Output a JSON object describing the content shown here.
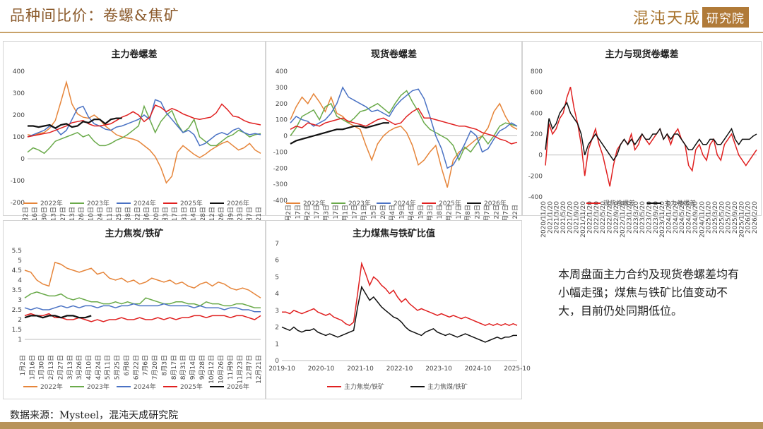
{
  "header": {
    "title": "品种间比价：卷螺&焦矿",
    "logo_text": "混沌天成",
    "logo_box": "研究院"
  },
  "note": "本周盘面主力合约及现货卷螺差均有小幅走强；煤焦与铁矿比值变动不大，目前仍处同期低位。",
  "source": "数据来源：Mysteel，混沌天成研究院",
  "colors": {
    "y2022": "#e6853a",
    "y2023": "#6aaa4a",
    "y2024": "#4a72c4",
    "y2025": "#e02020",
    "y2026": "#111111"
  },
  "chart_data": [
    {
      "id": "c1",
      "type": "line",
      "title": "主力卷螺差",
      "ylim": [
        -200,
        400
      ],
      "yticks": [
        -200,
        -100,
        0,
        100,
        200,
        300,
        400
      ],
      "x_labels": [
        "1月2日",
        "1月16日",
        "1月30日",
        "2月13日",
        "2月27日",
        "3月13日",
        "3月26日",
        "4月10日",
        "4月24日",
        "5月11日",
        "5月25日",
        "6月8日",
        "6月22日",
        "7月6日",
        "7月20日",
        "8月3日",
        "8月17日",
        "8月31日",
        "9月14日",
        "9月28日",
        "10月12日",
        "10月26日",
        "11月9日",
        "11月23日",
        "12月7日",
        "12月21日"
      ],
      "series": [
        {
          "name": "2022年",
          "color_key": "y2022",
          "values": [
            110,
            105,
            115,
            120,
            140,
            175,
            260,
            350,
            250,
            205,
            190,
            185,
            200,
            180,
            150,
            130,
            110,
            100,
            95,
            90,
            80,
            60,
            40,
            10,
            -40,
            -110,
            -80,
            30,
            60,
            40,
            20,
            5,
            20,
            40,
            55,
            70,
            80,
            60,
            40,
            50,
            70,
            40,
            25
          ]
        },
        {
          "name": "2023年",
          "color_key": "y2023",
          "values": [
            30,
            50,
            40,
            25,
            50,
            80,
            90,
            100,
            110,
            120,
            100,
            110,
            80,
            60,
            60,
            70,
            85,
            95,
            110,
            130,
            150,
            240,
            180,
            120,
            170,
            200,
            220,
            160,
            120,
            140,
            180,
            100,
            80,
            60,
            60,
            80,
            100,
            110,
            130,
            120,
            100,
            110,
            115
          ]
        },
        {
          "name": "2024年",
          "color_key": "y2024",
          "values": [
            100,
            110,
            120,
            130,
            150,
            140,
            110,
            130,
            180,
            230,
            240,
            190,
            160,
            150,
            135,
            130,
            145,
            150,
            160,
            170,
            180,
            200,
            180,
            270,
            260,
            210,
            180,
            150,
            120,
            130,
            110,
            60,
            70,
            90,
            110,
            120,
            110,
            130,
            140,
            120,
            110,
            115,
            110
          ]
        },
        {
          "name": "2025年",
          "color_key": "y2025",
          "values": [
            100,
            105,
            110,
            115,
            120,
            130,
            140,
            150,
            165,
            170,
            175,
            160,
            150,
            150,
            155,
            160,
            175,
            190,
            200,
            215,
            200,
            170,
            190,
            245,
            235,
            215,
            230,
            220,
            205,
            195,
            185,
            180,
            185,
            190,
            210,
            250,
            225,
            195,
            190,
            175,
            165,
            160,
            155
          ]
        },
        {
          "name": "2026年",
          "color_key": "y2026",
          "values": [
            150,
            150,
            145,
            150,
            155,
            140,
            155,
            160,
            145,
            150,
            170,
            165,
            180,
            180,
            160,
            180,
            185,
            185
          ]
        }
      ]
    },
    {
      "id": "c2",
      "type": "line",
      "title": "现货卷螺差",
      "ylim": [
        -400,
        400
      ],
      "yticks": [
        -400,
        -300,
        -200,
        -100,
        0,
        100,
        200,
        300,
        400
      ],
      "x_labels": [
        "1月2日",
        "1月17日",
        "2月2日",
        "2月17日",
        "3月3日",
        "3月17日",
        "4月1日",
        "4月17日",
        "5月1日",
        "5月15日",
        "5月20日",
        "6月4日",
        "6月19日",
        "7月4日",
        "7月19日",
        "8月3日",
        "8月18日",
        "9月2日",
        "9月17日",
        "10月8日",
        "10月23日",
        "11月7日",
        "11月22日",
        "12月7日",
        "12月22日"
      ],
      "series": [
        {
          "name": "2022年",
          "color_key": "y2022",
          "values": [
            100,
            180,
            240,
            200,
            260,
            210,
            150,
            240,
            140,
            120,
            80,
            60,
            40,
            -60,
            -150,
            -50,
            0,
            30,
            50,
            60,
            20,
            -60,
            -180,
            -150,
            -100,
            -60,
            -200,
            -320,
            -150,
            -100,
            -80,
            -50,
            -20,
            0,
            50,
            150,
            200,
            120,
            60,
            40
          ]
        },
        {
          "name": "2023年",
          "color_key": "y2023",
          "values": [
            0,
            50,
            120,
            140,
            160,
            100,
            180,
            200,
            120,
            100,
            80,
            110,
            150,
            160,
            180,
            200,
            170,
            140,
            200,
            250,
            280,
            210,
            150,
            80,
            40,
            20,
            0,
            -20,
            -60,
            -150,
            -70,
            -100,
            -50,
            0,
            -50,
            0,
            60,
            80,
            70,
            60
          ]
        },
        {
          "name": "2024年",
          "color_key": "y2024",
          "values": [
            80,
            120,
            100,
            90,
            60,
            80,
            100,
            140,
            200,
            300,
            240,
            220,
            200,
            180,
            150,
            160,
            140,
            120,
            180,
            220,
            250,
            280,
            290,
            230,
            120,
            0,
            -80,
            -200,
            -180,
            -120,
            -50,
            30,
            0,
            -100,
            -80,
            -20,
            30,
            50,
            80,
            60
          ]
        },
        {
          "name": "2025年",
          "color_key": "y2025",
          "values": [
            40,
            60,
            50,
            80,
            70,
            60,
            80,
            90,
            100,
            110,
            90,
            80,
            70,
            60,
            80,
            100,
            110,
            90,
            70,
            80,
            120,
            150,
            170,
            110,
            110,
            100,
            90,
            80,
            70,
            60,
            60,
            50,
            40,
            20,
            10,
            0,
            -20,
            -30,
            -50,
            -40
          ]
        },
        {
          "name": "2026年",
          "color_key": "y2026",
          "values": [
            -50,
            -30,
            -20,
            -10,
            0,
            10,
            20,
            30,
            40,
            40,
            50,
            60,
            60,
            50,
            60,
            70,
            80,
            80
          ]
        }
      ]
    },
    {
      "id": "c3",
      "type": "line",
      "title": "主力与现货卷螺差",
      "ylim": [
        -400,
        800
      ],
      "yticks": [
        -400,
        -200,
        0,
        200,
        400,
        600,
        800
      ],
      "x_labels": [
        "2020/11/20",
        "2021/1/20",
        "2021/3/20",
        "2021/5/20",
        "2021/7/20",
        "2021/9/20",
        "2021/11/20",
        "2022/1/20",
        "2022/3/20",
        "2022/5/20",
        "2022/7/20",
        "2022/9/20",
        "2022/11/20",
        "2023/1/20",
        "2023/3/20",
        "2023/5/20",
        "2023/7/20",
        "2023/9/20",
        "2023/11/20",
        "2024/1/20",
        "2024/3/20",
        "2024/5/20",
        "2024/7/20",
        "2024/9/20",
        "2024/11/20",
        "2025/1/20",
        "2025/3/20",
        "2025/5/20",
        "2025/7/20",
        "2025/9/20",
        "2025/11/20",
        "2026/1/20",
        "2026/2/20"
      ],
      "series": [
        {
          "name": "现货卷螺差",
          "color_key": "y2025",
          "values": [
            -100,
            300,
            200,
            250,
            350,
            400,
            550,
            650,
            450,
            300,
            100,
            -200,
            50,
            150,
            250,
            100,
            0,
            -150,
            -300,
            -100,
            50,
            100,
            150,
            100,
            200,
            50,
            100,
            200,
            150,
            100,
            150,
            200,
            250,
            150,
            200,
            100,
            200,
            250,
            150,
            100,
            -100,
            -150,
            50,
            100,
            0,
            -50,
            100,
            150,
            0,
            -50,
            100,
            150,
            200,
            100,
            0,
            -50,
            -100,
            -50,
            0,
            50
          ]
        },
        {
          "name": "主力卷螺差",
          "color_key": "y2026",
          "values": [
            50,
            350,
            250,
            300,
            400,
            450,
            500,
            400,
            350,
            300,
            200,
            0,
            100,
            150,
            200,
            150,
            100,
            50,
            0,
            -50,
            0,
            100,
            150,
            100,
            150,
            100,
            150,
            200,
            150,
            150,
            200,
            200,
            250,
            150,
            200,
            150,
            200,
            200,
            150,
            100,
            50,
            50,
            100,
            150,
            100,
            100,
            150,
            150,
            100,
            100,
            150,
            200,
            250,
            150,
            100,
            150,
            150,
            150,
            180,
            200
          ]
        }
      ]
    },
    {
      "id": "c4",
      "type": "line",
      "title": "主力焦炭/铁矿",
      "ylim": [
        1.0,
        5.5
      ],
      "yticks": [
        1.0,
        1.5,
        2.0,
        2.5,
        3.0,
        3.5,
        4.0,
        4.5,
        5.0,
        5.5
      ],
      "x_labels": [
        "1月2日",
        "1月16日",
        "1月30日",
        "2月13日",
        "2月27日",
        "3月13日",
        "3月26日",
        "4月10日",
        "4月24日",
        "5月11日",
        "5月25日",
        "6月8日",
        "6月22日",
        "7月6日",
        "7月20日",
        "8月3日",
        "8月17日",
        "8月31日",
        "9月14日",
        "9月28日",
        "10月12日",
        "10月26日",
        "11月9日",
        "11月23日",
        "12月7日",
        "12月21日"
      ],
      "series": [
        {
          "name": "2022年",
          "color_key": "y2022",
          "values": [
            4.5,
            4.4,
            4.0,
            3.8,
            3.7,
            4.9,
            4.8,
            4.6,
            4.5,
            4.4,
            4.5,
            4.6,
            4.3,
            4.4,
            4.1,
            4.0,
            4.1,
            3.9,
            4.0,
            3.8,
            3.9,
            4.1,
            4.0,
            3.9,
            4.0,
            3.8,
            3.9,
            3.7,
            3.6,
            3.8,
            3.9,
            3.7,
            3.9,
            3.8,
            3.6,
            3.5,
            3.6,
            3.5,
            3.3,
            3.1
          ]
        },
        {
          "name": "2023年",
          "color_key": "y2023",
          "values": [
            3.1,
            3.3,
            3.4,
            3.3,
            3.2,
            3.2,
            3.3,
            3.1,
            3.0,
            3.1,
            3.0,
            2.9,
            2.9,
            2.8,
            2.8,
            2.9,
            2.8,
            2.9,
            2.8,
            2.8,
            3.1,
            3.0,
            2.9,
            2.8,
            2.8,
            2.9,
            2.9,
            2.8,
            2.8,
            2.7,
            2.9,
            2.8,
            2.8,
            2.7,
            2.7,
            2.8,
            2.8,
            2.7,
            2.6,
            2.6
          ]
        },
        {
          "name": "2024年",
          "color_key": "y2024",
          "values": [
            2.6,
            2.5,
            2.6,
            2.5,
            2.5,
            2.6,
            2.7,
            2.6,
            2.7,
            2.6,
            2.7,
            2.7,
            2.6,
            2.7,
            2.7,
            2.6,
            2.7,
            2.7,
            2.8,
            2.7,
            2.7,
            2.7,
            2.7,
            2.8,
            2.7,
            2.7,
            2.7,
            2.7,
            2.6,
            2.7,
            2.6,
            2.6,
            2.6,
            2.5,
            2.6,
            2.6,
            2.5,
            2.5,
            2.4,
            2.4
          ]
        },
        {
          "name": "2025年",
          "color_key": "y2025",
          "values": [
            2.2,
            2.3,
            2.2,
            2.2,
            2.3,
            2.1,
            2.1,
            2.0,
            2.0,
            2.1,
            2.0,
            1.9,
            2.0,
            1.9,
            2.0,
            2.0,
            2.1,
            2.0,
            2.0,
            2.1,
            2.0,
            2.0,
            2.1,
            2.0,
            2.1,
            2.0,
            2.1,
            2.1,
            2.2,
            2.2,
            2.1,
            2.2,
            2.2,
            2.2,
            2.1,
            2.2,
            2.2,
            2.1,
            2.0,
            2.2
          ]
        },
        {
          "name": "2026年",
          "color_key": "y2026",
          "values": [
            2.1,
            2.2,
            2.2,
            2.1,
            2.2,
            2.2,
            2.1,
            2.2,
            2.2,
            2.1,
            2.1,
            2.2
          ]
        }
      ]
    },
    {
      "id": "c5",
      "type": "line",
      "title": "主力煤焦与铁矿比值",
      "ylim": [
        0,
        7
      ],
      "yticks": [
        0,
        1,
        2,
        3,
        4,
        5,
        6,
        7
      ],
      "x_labels": [
        "2019-10",
        "2020-10",
        "2021-10",
        "2022-10",
        "2023-10",
        "2024-10",
        "2025-10"
      ],
      "series": [
        {
          "name": "主力焦炭/铁矿",
          "color_key": "y2025",
          "values": [
            2.9,
            2.9,
            2.8,
            3.0,
            2.9,
            2.8,
            2.9,
            3.0,
            3.1,
            2.9,
            2.8,
            2.7,
            2.8,
            2.6,
            2.5,
            2.4,
            2.2,
            2.1,
            2.3,
            4.0,
            5.8,
            5.2,
            4.5,
            5.0,
            4.8,
            4.5,
            4.3,
            4.0,
            4.2,
            3.8,
            3.5,
            3.7,
            3.4,
            3.2,
            3.0,
            3.1,
            3.0,
            2.9,
            2.8,
            2.7,
            2.8,
            2.7,
            2.6,
            2.7,
            2.6,
            2.5,
            2.6,
            2.5,
            2.4,
            2.3,
            2.2,
            2.1,
            2.2,
            2.1,
            2.2,
            2.1,
            2.2,
            2.1,
            2.2,
            2.1
          ]
        },
        {
          "name": "主力焦煤/铁矿",
          "color_key": "y2026",
          "values": [
            2.0,
            1.9,
            1.8,
            2.0,
            1.8,
            1.7,
            1.8,
            1.8,
            1.9,
            1.7,
            1.6,
            1.5,
            1.6,
            1.5,
            1.4,
            1.5,
            1.6,
            1.7,
            1.8,
            3.2,
            4.4,
            4.0,
            3.6,
            3.8,
            3.5,
            3.2,
            3.0,
            2.8,
            2.6,
            2.5,
            2.3,
            2.0,
            1.8,
            1.7,
            1.6,
            1.5,
            1.7,
            1.8,
            1.9,
            1.7,
            1.6,
            1.5,
            1.6,
            1.5,
            1.4,
            1.5,
            1.6,
            1.5,
            1.4,
            1.3,
            1.2,
            1.1,
            1.2,
            1.3,
            1.4,
            1.3,
            1.4,
            1.4,
            1.5,
            1.5
          ]
        }
      ]
    }
  ]
}
